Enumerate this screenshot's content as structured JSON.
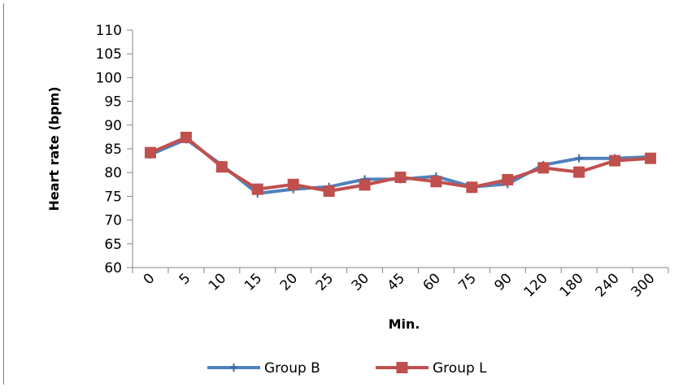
{
  "chart_data": {
    "type": "line",
    "xlabel": "Min.",
    "ylabel": "Heart rate (bpm)",
    "categories": [
      "0",
      "5",
      "10",
      "15",
      "20",
      "25",
      "30",
      "45",
      "60",
      "75",
      "90",
      "120",
      "180",
      "240",
      "300"
    ],
    "ylim": [
      60,
      110
    ],
    "yticks": [
      60,
      65,
      70,
      75,
      80,
      85,
      90,
      95,
      100,
      105,
      110
    ],
    "grid": false,
    "legend_position": "bottom",
    "series": [
      {
        "name": "Group B",
        "color": "#4f81bd",
        "marker": "plus",
        "values": [
          83.8,
          87.0,
          81.6,
          75.6,
          76.5,
          77.0,
          78.6,
          78.6,
          79.2,
          77.0,
          77.6,
          81.6,
          83.0,
          83.0,
          83.3
        ]
      },
      {
        "name": "Group L",
        "color": "#c0504d",
        "marker": "square",
        "values": [
          84.2,
          87.4,
          81.2,
          76.5,
          77.5,
          76.1,
          77.4,
          79.0,
          78.1,
          76.9,
          78.5,
          81.0,
          80.1,
          82.5,
          83.0
        ]
      }
    ]
  }
}
